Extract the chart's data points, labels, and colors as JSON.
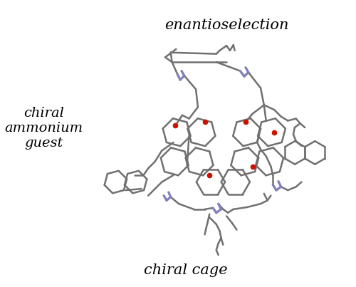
{
  "background_color": "#ffffff",
  "title_top": "enantioselection",
  "title_bottom": "chiral cage",
  "label_left_line1": "chiral",
  "label_left_line2": "ammonium",
  "label_left_line3": "guest",
  "font_style": "italic",
  "font_size_title": 15,
  "font_size_label": 14,
  "gray": "#707070",
  "blue": "#8080bb",
  "red": "#cc1100",
  "lw": 1.8
}
